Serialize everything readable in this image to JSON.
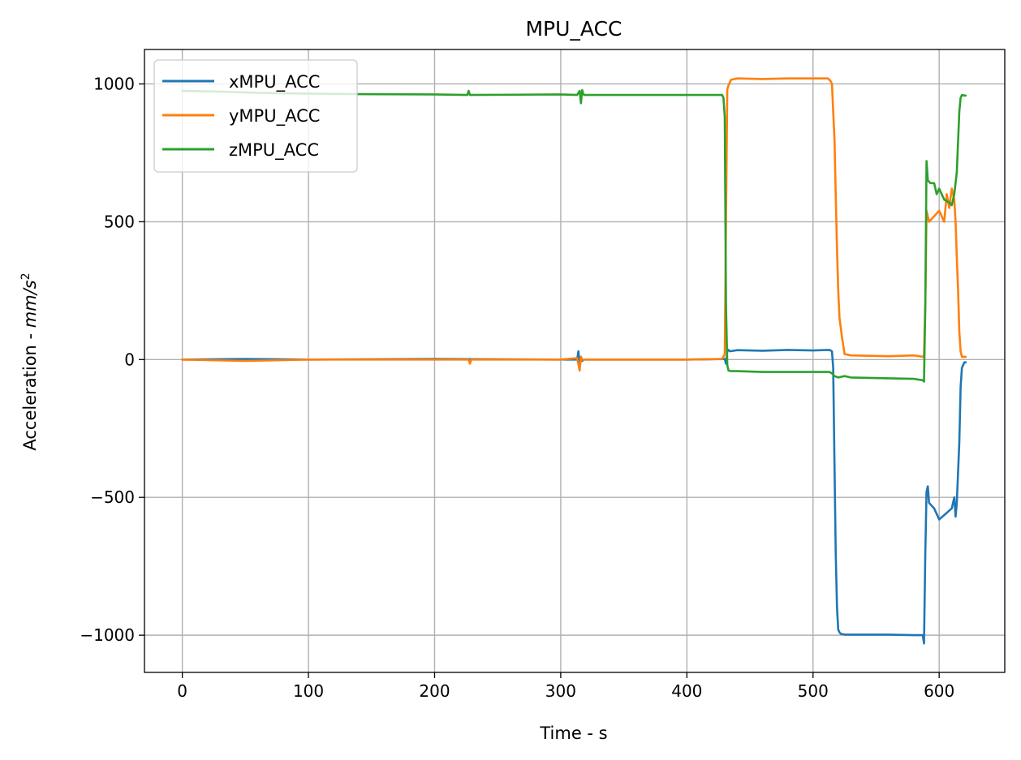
{
  "chart_data": {
    "type": "line",
    "title": "MPU_ACC",
    "xlabel": "Time - s",
    "ylabel_prefix": "Acceleration - ",
    "ylabel_unit_base": "mm/s",
    "ylabel_unit_exp": "2",
    "xlim": [
      -30,
      652
    ],
    "ylim": [
      -1135,
      1125
    ],
    "xticks": [
      0,
      100,
      200,
      300,
      400,
      500,
      600
    ],
    "xtick_labels": [
      "0",
      "100",
      "200",
      "300",
      "400",
      "500",
      "600"
    ],
    "yticks": [
      -1000,
      -500,
      0,
      500,
      1000
    ],
    "ytick_labels": [
      "−1000",
      "−500",
      "0",
      "500",
      "1000"
    ],
    "grid": true,
    "legend_position": "upper-left",
    "series": [
      {
        "name": "xMPU_ACC",
        "color": "#1f77b4",
        "x": [
          0,
          50,
          100,
          200,
          300,
          313,
          314,
          315,
          316,
          317,
          318,
          330,
          400,
          430,
          431,
          432,
          433,
          434,
          440,
          460,
          480,
          500,
          513,
          515,
          516,
          517,
          518,
          519,
          520,
          521,
          522,
          525,
          540,
          560,
          580,
          587,
          588,
          589,
          590,
          591,
          592,
          596,
          600,
          605,
          610,
          612,
          613,
          614,
          616,
          617,
          618,
          620,
          621
        ],
        "y": [
          0,
          2,
          0,
          2,
          0,
          0,
          30,
          -20,
          10,
          -5,
          0,
          0,
          0,
          2,
          -15,
          30,
          35,
          30,
          34,
          32,
          35,
          33,
          35,
          30,
          -30,
          -380,
          -700,
          -900,
          -980,
          -990,
          -995,
          -998,
          -998,
          -998,
          -1000,
          -1000,
          -1030,
          -700,
          -480,
          -460,
          -520,
          -540,
          -580,
          -560,
          -540,
          -500,
          -570,
          -520,
          -300,
          -100,
          -30,
          -10,
          -10
        ]
      },
      {
        "name": "yMPU_ACC",
        "color": "#ff7f0e",
        "x": [
          0,
          50,
          100,
          200,
          227,
          228,
          229,
          300,
          313,
          315,
          316,
          317,
          318,
          330,
          400,
          428,
          430,
          431,
          432,
          433,
          435,
          440,
          460,
          480,
          500,
          512,
          514,
          515,
          516,
          517,
          518,
          519,
          520,
          521,
          523,
          525,
          530,
          560,
          580,
          587,
          588,
          589,
          590,
          592,
          596,
          600,
          604,
          606,
          608,
          610,
          612,
          613,
          614,
          615,
          616,
          617,
          618,
          620,
          621
        ],
        "y": [
          0,
          -5,
          0,
          0,
          0,
          -15,
          0,
          0,
          5,
          -40,
          10,
          0,
          0,
          0,
          0,
          2,
          20,
          500,
          980,
          995,
          1015,
          1020,
          1018,
          1020,
          1020,
          1020,
          1010,
          1000,
          900,
          800,
          600,
          400,
          250,
          150,
          80,
          20,
          15,
          12,
          15,
          10,
          15,
          200,
          540,
          500,
          520,
          540,
          500,
          600,
          550,
          620,
          580,
          500,
          370,
          250,
          100,
          30,
          10,
          10,
          10
        ]
      },
      {
        "name": "zMPU_ACC",
        "color": "#2ca02c",
        "x": [
          0,
          30,
          60,
          100,
          140,
          200,
          226,
          227,
          228,
          300,
          313,
          315,
          316,
          317,
          318,
          319,
          330,
          400,
          428,
          429,
          430,
          431,
          432,
          433,
          435,
          440,
          460,
          480,
          500,
          513,
          515,
          517,
          520,
          525,
          530,
          560,
          580,
          587,
          588,
          589,
          590,
          591,
          593,
          596,
          598,
          600,
          604,
          608,
          610,
          612,
          614,
          616,
          617,
          618,
          620,
          621
        ],
        "y": [
          975,
          972,
          968,
          965,
          963,
          962,
          960,
          975,
          960,
          962,
          960,
          975,
          930,
          978,
          962,
          960,
          960,
          960,
          960,
          950,
          880,
          200,
          -20,
          -40,
          -42,
          -42,
          -45,
          -45,
          -45,
          -45,
          -50,
          -60,
          -65,
          -60,
          -65,
          -68,
          -70,
          -75,
          -80,
          200,
          720,
          650,
          640,
          640,
          600,
          620,
          580,
          570,
          560,
          600,
          680,
          900,
          950,
          960,
          958,
          958
        ]
      }
    ]
  }
}
